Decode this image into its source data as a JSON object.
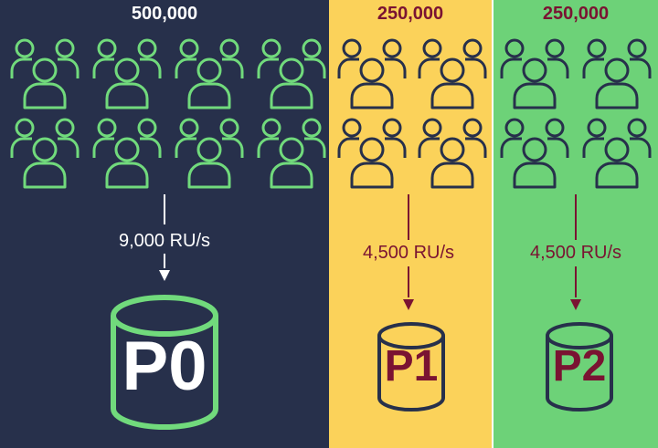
{
  "colors": {
    "panel_navy": "#27304b",
    "panel_yellow": "#fbd25a",
    "panel_green": "#6dd278",
    "icon_green": "#71da7c",
    "icon_navy": "#27304b",
    "text_white": "#ffffff",
    "text_maroon": "#7a1332"
  },
  "partitions": [
    {
      "count": "500,000",
      "throughput": "9,000 RU/s",
      "label": "P0",
      "icon": "user-group-icon"
    },
    {
      "count": "250,000",
      "throughput": "4,500 RU/s",
      "label": "P1",
      "icon": "user-group-icon"
    },
    {
      "count": "250,000",
      "throughput": "4,500 RU/s",
      "label": "P2",
      "icon": "user-group-icon"
    }
  ]
}
